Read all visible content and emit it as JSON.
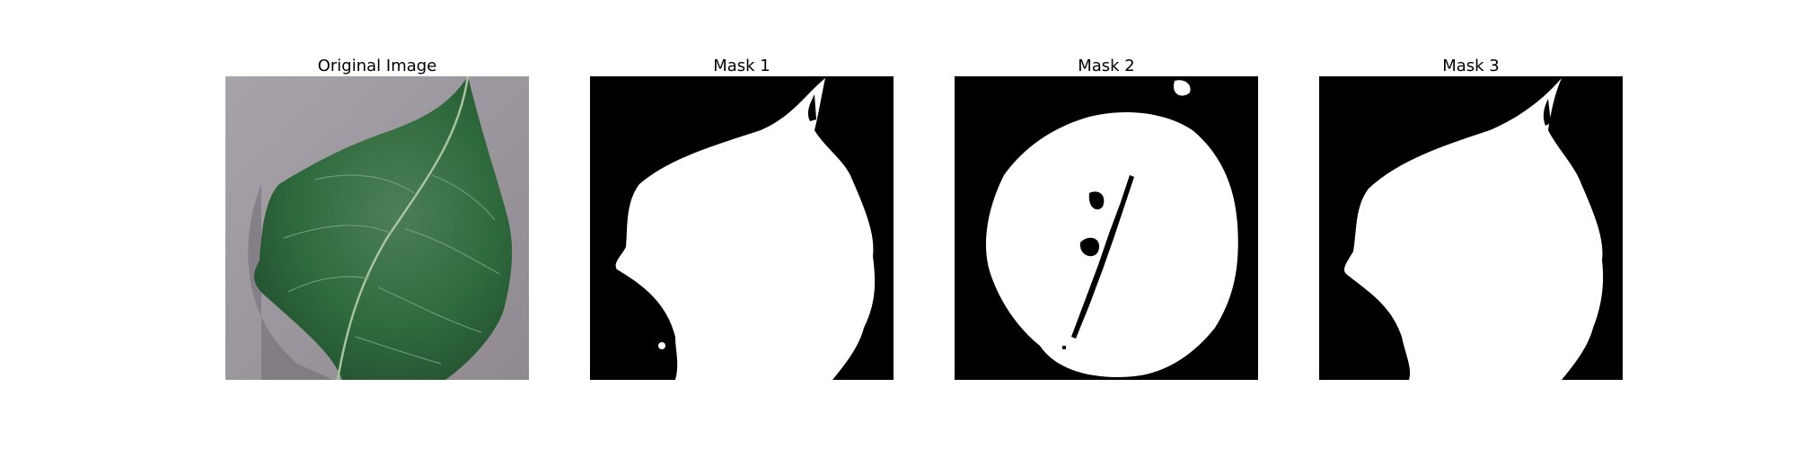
{
  "panels": [
    {
      "title": "Original Image"
    },
    {
      "title": "Mask 1"
    },
    {
      "title": "Mask 2"
    },
    {
      "title": "Mask 3"
    }
  ],
  "colors": {
    "background_gray": "#9c969c",
    "leaf_dark": "#1f4a2c",
    "leaf_mid": "#2f6a3c",
    "leaf_light": "#5f8f67",
    "mask_fg": "#ffffff",
    "mask_bg": "#000000"
  }
}
